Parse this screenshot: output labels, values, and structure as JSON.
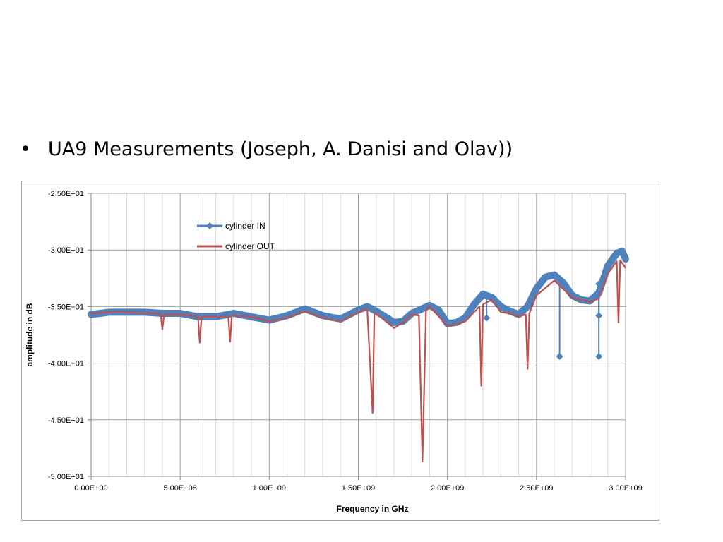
{
  "slide": {
    "bullet": "•",
    "text": "UA9 Measurements (Joseph, A. Danisi and Olav))"
  },
  "colors": {
    "in": "#4f81bd",
    "out": "#c0504d",
    "grid": "#bfbfbf",
    "axis": "#868686"
  },
  "chart_data": {
    "type": "line",
    "xlabel": "Frequency in GHz",
    "ylabel": "amplitude in dB",
    "xlim": [
      0,
      3000000000
    ],
    "ylim": [
      -50,
      -25
    ],
    "xticks": [
      0,
      500000000,
      1000000000,
      1500000000,
      2000000000,
      2500000000,
      3000000000
    ],
    "xtick_labels": [
      "0.00E+00",
      "5.00E+08",
      "1.00E+09",
      "1.50E+09",
      "2.00E+09",
      "2.50E+09",
      "3.00E+09"
    ],
    "yticks": [
      -25,
      -30,
      -35,
      -40,
      -45,
      -50
    ],
    "ytick_labels": [
      "-2.50E+01",
      "-3.00E+01",
      "-3.50E+01",
      "-4.00E+01",
      "-4.50E+01",
      "-5.00E+01"
    ],
    "grid": true,
    "legend_position": "top-left",
    "series": [
      {
        "name": "cylinder IN",
        "color": "#4f81bd",
        "x": [
          0,
          50000000,
          100000000,
          200000000,
          300000000,
          400000000,
          500000000,
          600000000,
          700000000,
          800000000,
          900000000,
          1000000000,
          1100000000,
          1200000000,
          1300000000,
          1400000000,
          1500000000,
          1550000000,
          1600000000,
          1700000000,
          1750000000,
          1800000000,
          1900000000,
          1950000000,
          2000000000,
          2050000000,
          2100000000,
          2150000000,
          2200000000,
          2250000000,
          2300000000,
          2350000000,
          2400000000,
          2450000000,
          2500000000,
          2550000000,
          2600000000,
          2650000000,
          2700000000,
          2750000000,
          2800000000,
          2850000000,
          2900000000,
          2950000000,
          2980000000,
          3000000000
        ],
        "values": [
          -35.7,
          -35.6,
          -35.5,
          -35.5,
          -35.5,
          -35.6,
          -35.6,
          -35.9,
          -35.9,
          -35.6,
          -35.9,
          -36.2,
          -35.8,
          -35.2,
          -35.8,
          -36.1,
          -35.3,
          -35.0,
          -35.4,
          -36.4,
          -36.3,
          -35.6,
          -34.9,
          -35.3,
          -36.5,
          -36.4,
          -36.0,
          -34.8,
          -33.9,
          -34.2,
          -35.0,
          -35.4,
          -35.7,
          -35.0,
          -33.4,
          -32.4,
          -32.2,
          -32.9,
          -34.0,
          -34.4,
          -34.5,
          -33.8,
          -31.4,
          -30.3,
          -30.1,
          -30.8
        ]
      },
      {
        "name": "cylinder OUT",
        "color": "#c0504d",
        "x": [
          0,
          100000000,
          200000000,
          300000000,
          390000000,
          400000000,
          410000000,
          500000000,
          600000000,
          610000000,
          620000000,
          700000000,
          770000000,
          780000000,
          790000000,
          900000000,
          1000000000,
          1100000000,
          1200000000,
          1300000000,
          1400000000,
          1500000000,
          1550000000,
          1580000000,
          1590000000,
          1600000000,
          1700000000,
          1750000000,
          1800000000,
          1840000000,
          1860000000,
          1880000000,
          1900000000,
          2000000000,
          2050000000,
          2100000000,
          2180000000,
          2190000000,
          2200000000,
          2250000000,
          2300000000,
          2350000000,
          2400000000,
          2440000000,
          2450000000,
          2460000000,
          2500000000,
          2600000000,
          2700000000,
          2800000000,
          2850000000,
          2900000000,
          2950000000,
          2960000000,
          2970000000,
          3000000000
        ],
        "values": [
          -35.6,
          -35.5,
          -35.5,
          -35.6,
          -35.6,
          -37.0,
          -35.7,
          -35.7,
          -35.9,
          -38.2,
          -35.9,
          -35.9,
          -35.9,
          -38.1,
          -35.8,
          -35.9,
          -36.3,
          -36.0,
          -35.4,
          -36.0,
          -36.3,
          -35.5,
          -35.2,
          -44.4,
          -35.5,
          -35.6,
          -36.9,
          -36.4,
          -35.7,
          -35.8,
          -48.7,
          -35.3,
          -35.0,
          -36.7,
          -36.6,
          -36.3,
          -35.0,
          -42.0,
          -34.8,
          -34.4,
          -35.5,
          -35.6,
          -35.9,
          -35.7,
          -40.5,
          -35.6,
          -34.0,
          -32.7,
          -34.2,
          -34.6,
          -34.3,
          -32.1,
          -31.0,
          -36.4,
          -30.9,
          -31.6
        ]
      }
    ],
    "in_markers": [
      {
        "x": 2220000000,
        "y": -36.0
      },
      {
        "x": 2630000000,
        "y": -39.4
      },
      {
        "x": 2850000000,
        "y": -35.8
      },
      {
        "x": 2850000000,
        "y": -39.4
      },
      {
        "x": 2850000000,
        "y": -33.0
      }
    ]
  }
}
